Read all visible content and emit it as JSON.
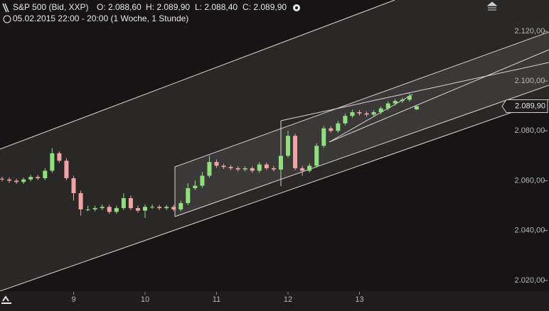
{
  "chart_data": {
    "type": "candlestick",
    "title": "S&P 500 (Bid, XXP)",
    "ohlc_header": [
      "O: 2.088,60",
      "H: 2.089,90",
      "L: 2.088,40",
      "C: 2.089,90"
    ],
    "subtitle": "05.02.2015 22:00 - 20:00 (1 Woche, 1 Stunde)",
    "categories": [
      null,
      null,
      null,
      null,
      null,
      null,
      null,
      null,
      null,
      null,
      "9",
      null,
      null,
      null,
      null,
      null,
      null,
      null,
      null,
      null,
      "10",
      null,
      null,
      null,
      null,
      null,
      null,
      null,
      null,
      null,
      "11",
      null,
      null,
      null,
      null,
      null,
      null,
      null,
      null,
      null,
      "12",
      null,
      null,
      null,
      null,
      null,
      null,
      null,
      null,
      null,
      "13",
      null,
      null,
      null,
      null,
      null,
      null,
      null,
      null
    ],
    "open": [
      2060.8,
      2060.5,
      2060,
      2059.5,
      2060.5,
      2061.5,
      2061,
      2064,
      2071,
      2068,
      2061,
      2055,
      2048.5,
      2048.5,
      2049,
      2049.5,
      2047.5,
      2049,
      2053,
      2049,
      2048,
      2049.5,
      2049.5,
      2049,
      2049.5,
      2048.5,
      2051,
      2057,
      2058,
      2062,
      2067.5,
      2066,
      2065.5,
      2065,
      2064.5,
      2065,
      2064,
      2066.5,
      2065,
      2064.5,
      2070,
      2078,
      2065,
      2064,
      2066,
      2074,
      2081,
      2080,
      2083,
      2086,
      2087.5,
      2087,
      2086.5,
      2087.5,
      2089,
      2091,
      2092,
      2092.5,
      2088.6
    ],
    "high": [
      2061.6,
      2061.3,
      2060.8,
      2061.3,
      2062.3,
      2062.3,
      2065,
      2073,
      2071.8,
      2069,
      2062,
      2056,
      2050,
      2050,
      2050.5,
      2050.5,
      2050,
      2055,
      2054,
      2050,
      2050.5,
      2050.5,
      2050.3,
      2050.3,
      2050.3,
      2052,
      2059,
      2060,
      2063.5,
      2070,
      2068.5,
      2066.8,
      2066.3,
      2065.8,
      2065.8,
      2065.8,
      2067.5,
      2067.3,
      2066,
      2071,
      2080,
      2078.8,
      2066,
      2067,
      2075,
      2082,
      2081.8,
      2084,
      2087,
      2088.5,
      2088.3,
      2087.8,
      2088.3,
      2089.8,
      2091.8,
      2092.8,
      2093.3,
      2095,
      2089.9
    ],
    "low": [
      2059.7,
      2059.2,
      2058.7,
      2058.7,
      2059.7,
      2060.2,
      2060.2,
      2063.2,
      2067.2,
      2060.2,
      2052,
      2046,
      2047.7,
      2047.7,
      2048.2,
      2046.7,
      2046.7,
      2048.2,
      2048.2,
      2047.2,
      2045,
      2048.7,
      2048.2,
      2048.2,
      2047.7,
      2047.7,
      2050.2,
      2056.2,
      2057.2,
      2061.2,
      2065.2,
      2064.7,
      2064.2,
      2063.7,
      2063.7,
      2063.2,
      2063.2,
      2064.2,
      2063.7,
      2062,
      2069.2,
      2064.2,
      2062,
      2063.2,
      2065.2,
      2073.2,
      2079.2,
      2079.2,
      2082.2,
      2085.2,
      2086.2,
      2085.7,
      2085.7,
      2086.7,
      2088.2,
      2090.2,
      2091.2,
      2091.7,
      2088.4
    ],
    "close": [
      2060.5,
      2060,
      2059.5,
      2060.5,
      2061.5,
      2061,
      2064,
      2071,
      2068,
      2061,
      2055,
      2048.5,
      2048.5,
      2049,
      2049.5,
      2047.5,
      2049,
      2053,
      2049,
      2048,
      2049.5,
      2049.5,
      2049,
      2049.5,
      2048.5,
      2051,
      2057,
      2058,
      2062,
      2067.5,
      2066,
      2065.5,
      2065,
      2064.5,
      2065,
      2064,
      2066.5,
      2065,
      2064.5,
      2070,
      2078,
      2065,
      2064,
      2066,
      2074,
      2081,
      2080,
      2083,
      2086,
      2087.5,
      2087,
      2086.5,
      2087.5,
      2089,
      2091,
      2092,
      2092.5,
      2094,
      2089.9
    ],
    "last_label": "2.089,90",
    "up_color": "#8fe07c",
    "down_color": "#f2a3a3",
    "ylim": [
      2015.7,
      2132.5
    ],
    "yticks": [
      {
        "value": 2020,
        "label": "2.020,00-"
      },
      {
        "value": 2040,
        "label": "2.040,00-"
      },
      {
        "value": 2060,
        "label": "2.060,00-"
      },
      {
        "value": 2080,
        "label": "2.080,00-"
      },
      {
        "value": 2100,
        "label": "2.100,00-"
      },
      {
        "value": 2120,
        "label": "2.120,00-"
      }
    ]
  }
}
